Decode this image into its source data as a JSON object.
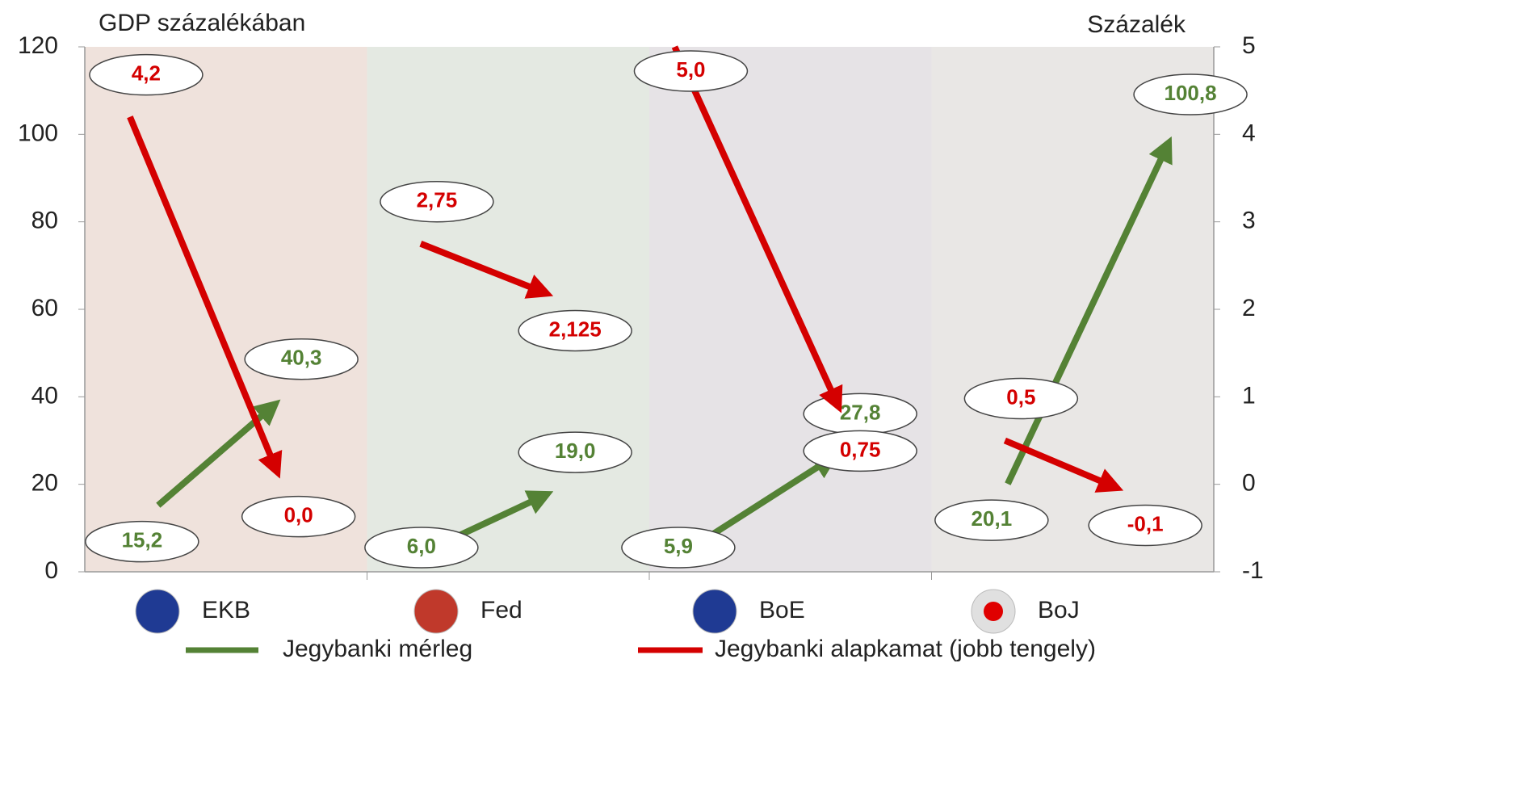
{
  "chart_data": {
    "type": "arrow",
    "y_label": "GDP százalékában",
    "y2_label": "Százalék",
    "categories": [
      "EKB",
      "Fed",
      "BoE",
      "BoJ"
    ],
    "series": [
      {
        "name": "Jegybanki mérleg",
        "color": "#548235",
        "values": [
          [
            15.2,
            40.3
          ],
          [
            6.0,
            19.0
          ],
          [
            5.9,
            27.8
          ],
          [
            20.1,
            100.8
          ]
        ],
        "value_labels": [
          [
            "15,2",
            "40,3"
          ],
          [
            "6,0",
            "19,0"
          ],
          [
            "5,9",
            "27,8"
          ],
          [
            "20,1",
            "100,8"
          ]
        ]
      },
      {
        "name": "Jegybanki alapkamat (jobb tengely)",
        "color": "#d40000",
        "axis": "y2",
        "values": [
          [
            4.2,
            0.0
          ],
          [
            2.75,
            2.125
          ],
          [
            5.0,
            0.75
          ],
          [
            0.5,
            -0.1
          ]
        ],
        "value_labels": [
          [
            "4,2",
            "0,0"
          ],
          [
            "2,75",
            "2,125"
          ],
          [
            "5,0",
            "0,75"
          ],
          [
            "0,5",
            "-0,1"
          ]
        ]
      }
    ],
    "ylim": [
      0,
      120
    ],
    "yticks": [
      0,
      20,
      40,
      60,
      80,
      100,
      120
    ],
    "y2lim": [
      -1,
      5
    ],
    "y2ticks": [
      -1,
      0,
      1,
      2,
      3,
      4,
      5
    ]
  }
}
